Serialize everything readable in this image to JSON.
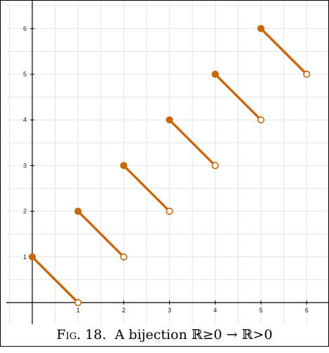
{
  "caption": {
    "fig_label": "Fig. 18.",
    "text": "A bijection ℝ≥0 → ℝ>0"
  },
  "colors": {
    "segment": "#c8660a",
    "grid": "#e4e4e4",
    "axis": "#000000"
  },
  "chart_data": {
    "type": "line",
    "title": "",
    "xlabel": "",
    "ylabel": "",
    "xlim": [
      -0.05,
      6.5
    ],
    "ylim": [
      -0.05,
      6.5
    ],
    "grid": true,
    "x_ticks": [
      "1",
      "2",
      "3",
      "4",
      "5",
      "6"
    ],
    "y_ticks": [
      "1",
      "2",
      "3",
      "4",
      "5",
      "6"
    ],
    "segments": [
      {
        "start": [
          0,
          1
        ],
        "end": [
          1,
          0
        ],
        "start_closed": true,
        "end_closed": false
      },
      {
        "start": [
          1,
          2
        ],
        "end": [
          2,
          1
        ],
        "start_closed": true,
        "end_closed": false
      },
      {
        "start": [
          2,
          3
        ],
        "end": [
          3,
          2
        ],
        "start_closed": true,
        "end_closed": false
      },
      {
        "start": [
          3,
          4
        ],
        "end": [
          4,
          3
        ],
        "start_closed": true,
        "end_closed": false
      },
      {
        "start": [
          4,
          5
        ],
        "end": [
          5,
          4
        ],
        "start_closed": true,
        "end_closed": false
      },
      {
        "start": [
          5,
          6
        ],
        "end": [
          6,
          5
        ],
        "start_closed": true,
        "end_closed": false
      }
    ]
  }
}
